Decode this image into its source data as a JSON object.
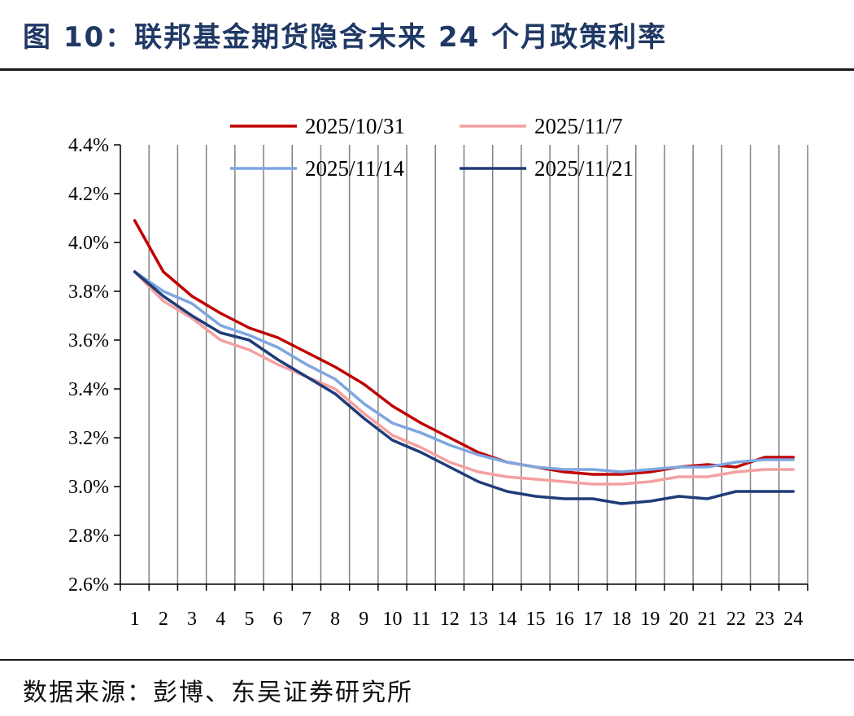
{
  "title": "图 10：联邦基金期货隐含未来 24 个月政策利率",
  "source": "数据来源：彭博、东吴证券研究所",
  "chart_data": {
    "type": "line",
    "title": "",
    "xlabel": "",
    "ylabel": "",
    "x": [
      1,
      2,
      3,
      4,
      5,
      6,
      7,
      8,
      9,
      10,
      11,
      12,
      13,
      14,
      15,
      16,
      17,
      18,
      19,
      20,
      21,
      22,
      23,
      24
    ],
    "ylim": [
      2.6,
      4.4
    ],
    "yticks": [
      2.6,
      2.8,
      3.0,
      3.2,
      3.4,
      3.6,
      3.8,
      4.0,
      4.2,
      4.4
    ],
    "ytick_labels": [
      "2.6%",
      "2.8%",
      "3.0%",
      "3.2%",
      "3.4%",
      "3.6%",
      "3.8%",
      "4.0%",
      "4.2%",
      "4.4%"
    ],
    "xtick_labels": [
      "1",
      "2",
      "3",
      "4",
      "5",
      "6",
      "7",
      "8",
      "9",
      "10",
      "11",
      "12",
      "13",
      "14",
      "15",
      "16",
      "17",
      "18",
      "19",
      "20",
      "21",
      "22",
      "23",
      "24"
    ],
    "grid": "vertical",
    "legend_position": "top",
    "series": [
      {
        "name": "2025/10/31",
        "color": "#c00000",
        "values": [
          4.09,
          3.88,
          3.78,
          3.71,
          3.65,
          3.61,
          3.55,
          3.49,
          3.42,
          3.33,
          3.26,
          3.2,
          3.14,
          3.1,
          3.08,
          3.06,
          3.05,
          3.05,
          3.06,
          3.08,
          3.09,
          3.08,
          3.12,
          3.12
        ]
      },
      {
        "name": "2025/11/7",
        "color": "#f4a0a0",
        "values": [
          3.88,
          3.76,
          3.69,
          3.6,
          3.56,
          3.5,
          3.45,
          3.4,
          3.3,
          3.21,
          3.16,
          3.1,
          3.06,
          3.04,
          3.03,
          3.02,
          3.01,
          3.01,
          3.02,
          3.04,
          3.04,
          3.06,
          3.07,
          3.07
        ]
      },
      {
        "name": "2025/11/14",
        "color": "#7ea6e0",
        "values": [
          3.88,
          3.8,
          3.75,
          3.66,
          3.62,
          3.57,
          3.5,
          3.44,
          3.34,
          3.26,
          3.22,
          3.17,
          3.13,
          3.1,
          3.08,
          3.07,
          3.07,
          3.06,
          3.07,
          3.08,
          3.08,
          3.1,
          3.11,
          3.11
        ]
      },
      {
        "name": "2025/11/21",
        "color": "#1f3c78",
        "values": [
          3.88,
          3.78,
          3.7,
          3.63,
          3.6,
          3.52,
          3.45,
          3.38,
          3.28,
          3.19,
          3.14,
          3.08,
          3.02,
          2.98,
          2.96,
          2.95,
          2.95,
          2.93,
          2.94,
          2.96,
          2.95,
          2.98,
          2.98,
          2.98
        ]
      }
    ]
  }
}
